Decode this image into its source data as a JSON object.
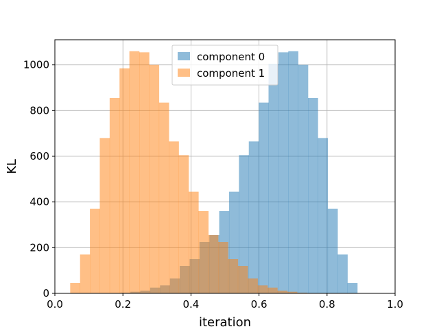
{
  "chart_data": {
    "type": "bar",
    "subtype": "overlapping-histogram",
    "xlabel": "iteration",
    "ylabel": "KL",
    "xlim": [
      0.0,
      1.0
    ],
    "ylim": [
      0,
      1110
    ],
    "xticks": [
      "0.0",
      "0.2",
      "0.4",
      "0.6",
      "0.8",
      "1.0"
    ],
    "yticks": [
      "0",
      "200",
      "400",
      "600",
      "800",
      "1000"
    ],
    "grid": true,
    "legend_position": "top-center",
    "series": [
      {
        "name": "component 0",
        "color": "#1f77b4",
        "opacity": 0.5,
        "bin_edges": [
          0.164,
          0.193,
          0.222,
          0.251,
          0.28,
          0.309,
          0.338,
          0.367,
          0.396,
          0.425,
          0.454,
          0.483,
          0.512,
          0.541,
          0.57,
          0.599,
          0.628,
          0.657,
          0.686,
          0.715,
          0.744,
          0.773,
          0.802,
          0.831,
          0.86,
          0.889,
          0.918,
          0.947
        ],
        "counts": [
          1,
          3,
          7,
          12,
          25,
          35,
          65,
          120,
          150,
          225,
          255,
          360,
          445,
          605,
          665,
          835,
          1005,
          1055,
          1060,
          1000,
          855,
          680,
          370,
          170,
          45,
          0,
          0
        ]
      },
      {
        "name": "component 1",
        "color": "#ff7f0e",
        "opacity": 0.5,
        "bin_edges": [
          0.045,
          0.074,
          0.103,
          0.132,
          0.161,
          0.19,
          0.219,
          0.248,
          0.277,
          0.306,
          0.335,
          0.364,
          0.393,
          0.422,
          0.451,
          0.48,
          0.509,
          0.538,
          0.567,
          0.596,
          0.625,
          0.654,
          0.683,
          0.712,
          0.741,
          0.77,
          0.799,
          0.828
        ],
        "counts": [
          45,
          170,
          370,
          680,
          855,
          985,
          1060,
          1055,
          1000,
          835,
          665,
          605,
          445,
          360,
          255,
          225,
          150,
          120,
          65,
          35,
          25,
          12,
          7,
          3,
          1,
          0,
          0
        ]
      }
    ]
  }
}
